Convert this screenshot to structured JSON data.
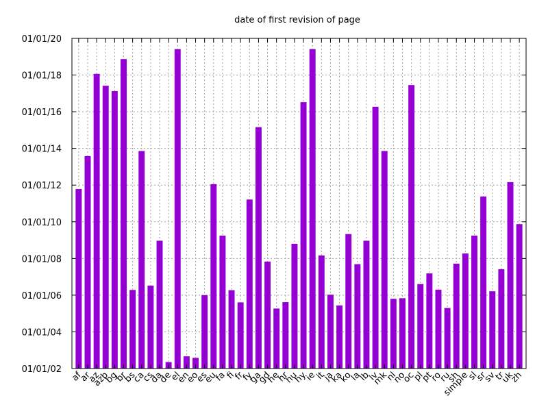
{
  "chart_data": {
    "type": "bar",
    "title": "date of first revision of page",
    "xlabel": "",
    "ylabel": "",
    "y_axis": "date",
    "ylim": [
      "2002-01-01",
      "2020-01-01"
    ],
    "y_ticks": [
      {
        "value": "2002-01-01",
        "label": "01/01/02"
      },
      {
        "value": "2004-01-01",
        "label": "01/01/04"
      },
      {
        "value": "2006-01-01",
        "label": "01/01/06"
      },
      {
        "value": "2008-01-01",
        "label": "01/01/08"
      },
      {
        "value": "2010-01-01",
        "label": "01/01/10"
      },
      {
        "value": "2012-01-01",
        "label": "01/01/12"
      },
      {
        "value": "2014-01-01",
        "label": "01/01/14"
      },
      {
        "value": "2016-01-01",
        "label": "01/01/16"
      },
      {
        "value": "2018-01-01",
        "label": "01/01/18"
      },
      {
        "value": "2020-01-01",
        "label": "01/01/20"
      }
    ],
    "grid": true,
    "bar_color": "#9400d3",
    "categories": [
      "af",
      "ar",
      "az",
      "azb",
      "bg",
      "br",
      "bs",
      "ca",
      "cs",
      "da",
      "de",
      "el",
      "en",
      "eo",
      "es",
      "eu",
      "fa",
      "fi",
      "fr",
      "fy",
      "ga",
      "gd",
      "he",
      "hr",
      "hu",
      "hy",
      "ie",
      "it",
      "ja",
      "ka",
      "ko",
      "la",
      "lb",
      "lv",
      "mk",
      "nl",
      "no",
      "oc",
      "pl",
      "pt",
      "ro",
      "ru",
      "sh",
      "simple",
      "sl",
      "sr",
      "sv",
      "tr",
      "uk",
      "zh"
    ],
    "values": [
      "2011-10-15",
      "2013-08-01",
      "2018-01-25",
      "2017-06-01",
      "2017-02-15",
      "2018-11-15",
      "2006-04-15",
      "2013-11-10",
      "2006-07-10",
      "2008-12-20",
      "2002-05-10",
      "2019-06-01",
      "2002-09-01",
      "2002-08-01",
      "2006-01-01",
      "2012-01-20",
      "2009-04-01",
      "2006-04-10",
      "2005-08-10",
      "2011-03-20",
      "2015-03-01",
      "2007-11-01",
      "2005-04-10",
      "2005-08-15",
      "2008-10-20",
      "2016-07-10",
      "2019-06-01",
      "2008-03-01",
      "2006-01-10",
      "2005-06-10",
      "2009-05-01",
      "2007-09-10",
      "2008-12-20",
      "2016-04-10",
      "2013-11-10",
      "2005-10-20",
      "2005-11-01",
      "2017-06-15",
      "2006-08-10",
      "2007-03-10",
      "2006-04-20",
      "2005-04-20",
      "2007-09-20",
      "2008-04-10",
      "2009-04-01",
      "2011-05-20",
      "2006-03-20",
      "2007-06-01",
      "2012-03-01",
      "2009-11-15"
    ]
  }
}
